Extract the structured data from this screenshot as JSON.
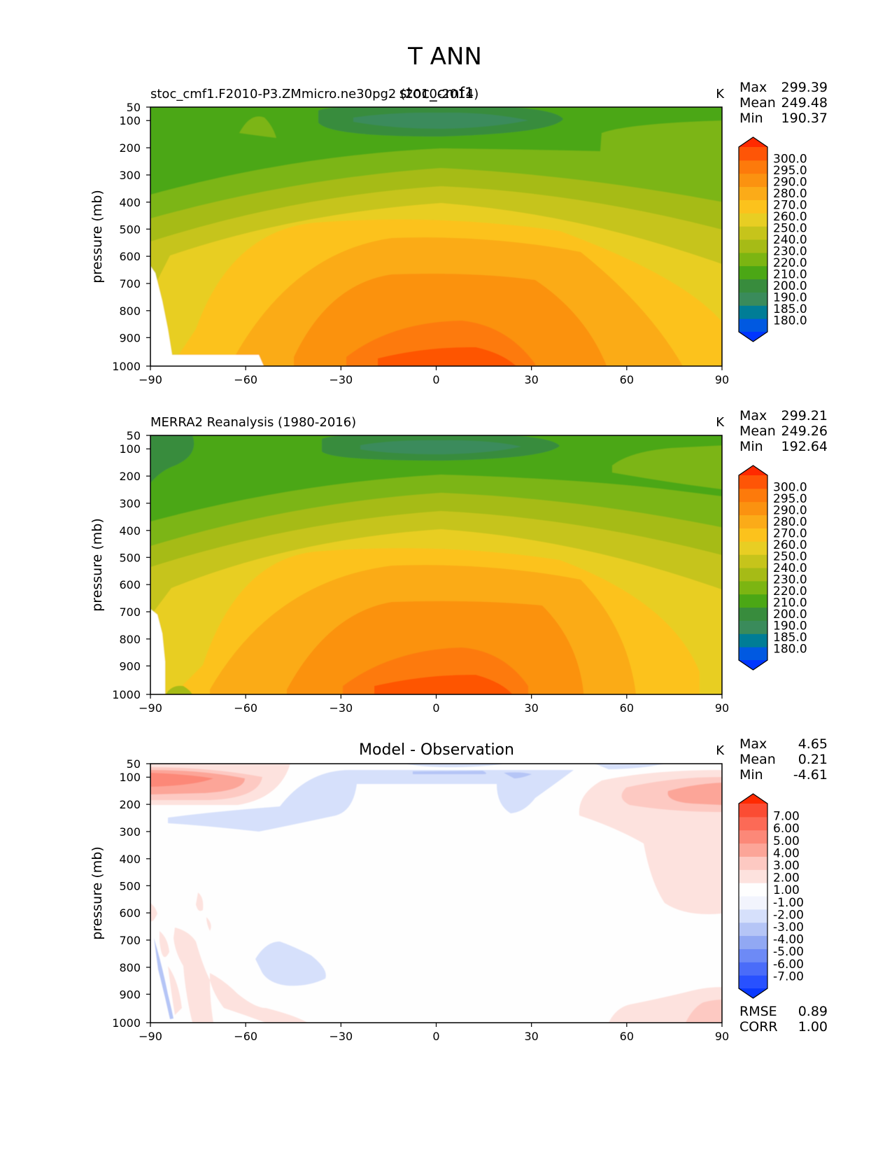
{
  "figure": {
    "title": "T ANN"
  },
  "colors": {
    "abs_levels": [
      "#0036ff",
      "#0059e1",
      "#007d96",
      "#3a8b5b",
      "#388c3d",
      "#4ba715",
      "#7cb512",
      "#a6bb16",
      "#c6c41b",
      "#e8ce23",
      "#fcc21c",
      "#fbab18",
      "#fb9210",
      "#fd7a0b",
      "#fe5506",
      "#ff2a00"
    ],
    "diff_levels": [
      "#0a39ff",
      "#2851ff",
      "#4a6cf9",
      "#6d8af6",
      "#91a8f3",
      "#b5c5f6",
      "#d6e0fb",
      "#f2f4fd",
      "#fefefe",
      "#fde2de",
      "#fdc9c2",
      "#fca598",
      "#fc8878",
      "#fc6a56",
      "#fb4c33",
      "#ff2a00"
    ]
  },
  "chart_data": [
    {
      "type": "heatmap",
      "panel": "model",
      "title_left": "stoc_cmf1.F2010-P3.ZMmicro.ne30pg2 (2010-2014)",
      "title_center": "stoc_cmf1",
      "units": "K",
      "stats": [
        {
          "label": "Max",
          "value": "299.39"
        },
        {
          "label": "Mean",
          "value": "249.48"
        },
        {
          "label": "Min",
          "value": "190.37"
        }
      ],
      "ylabel": "pressure (mb)",
      "yticks": [
        "50",
        "100",
        "200",
        "300",
        "400",
        "500",
        "600",
        "700",
        "800",
        "900",
        "1000"
      ],
      "xticks": [
        "−90",
        "−60",
        "−30",
        "0",
        "30",
        "60",
        "90"
      ],
      "xlim": [
        -90,
        90
      ],
      "ylim": [
        1000,
        50
      ],
      "colorbar_levels": [
        "300.0",
        "295.0",
        "290.0",
        "280.0",
        "270.0",
        "260.0",
        "250.0",
        "240.0",
        "230.0",
        "220.0",
        "210.0",
        "200.0",
        "190.0",
        "185.0",
        "180.0"
      ],
      "field_range_K": [
        190.37,
        299.39
      ]
    },
    {
      "type": "heatmap",
      "panel": "observation",
      "title_left": "MERRA2 Reanalysis (1980-2016)",
      "title_center": "",
      "units": "K",
      "stats": [
        {
          "label": "Max",
          "value": "299.21"
        },
        {
          "label": "Mean",
          "value": "249.26"
        },
        {
          "label": "Min",
          "value": "192.64"
        }
      ],
      "ylabel": "pressure (mb)",
      "yticks": [
        "50",
        "100",
        "200",
        "300",
        "400",
        "500",
        "600",
        "700",
        "800",
        "900",
        "1000"
      ],
      "xticks": [
        "−90",
        "−60",
        "−30",
        "0",
        "30",
        "60",
        "90"
      ],
      "xlim": [
        -90,
        90
      ],
      "ylim": [
        1000,
        50
      ],
      "colorbar_levels": [
        "300.0",
        "295.0",
        "290.0",
        "280.0",
        "270.0",
        "260.0",
        "250.0",
        "240.0",
        "230.0",
        "220.0",
        "210.0",
        "200.0",
        "190.0",
        "185.0",
        "180.0"
      ],
      "field_range_K": [
        192.64,
        299.21
      ]
    },
    {
      "type": "heatmap",
      "panel": "difference",
      "title_left": "",
      "title_center": "Model - Observation",
      "units": "K",
      "stats": [
        {
          "label": "Max",
          "value": "4.65"
        },
        {
          "label": "Mean",
          "value": "0.21"
        },
        {
          "label": "Min",
          "value": "-4.61"
        }
      ],
      "extra_stats": [
        {
          "label": "RMSE",
          "value": "0.89"
        },
        {
          "label": "CORR",
          "value": "1.00"
        }
      ],
      "ylabel": "pressure (mb)",
      "yticks": [
        "50",
        "100",
        "200",
        "300",
        "400",
        "500",
        "600",
        "700",
        "800",
        "900",
        "1000"
      ],
      "xticks": [
        "−90",
        "−60",
        "−30",
        "0",
        "30",
        "60",
        "90"
      ],
      "xlim": [
        -90,
        90
      ],
      "ylim": [
        1000,
        50
      ],
      "colorbar_levels": [
        "7.00",
        "6.00",
        "5.00",
        "4.00",
        "3.00",
        "2.00",
        "1.00",
        "-1.00",
        "-2.00",
        "-3.00",
        "-4.00",
        "-5.00",
        "-6.00",
        "-7.00"
      ],
      "field_range_K": [
        -4.61,
        4.65
      ]
    }
  ]
}
